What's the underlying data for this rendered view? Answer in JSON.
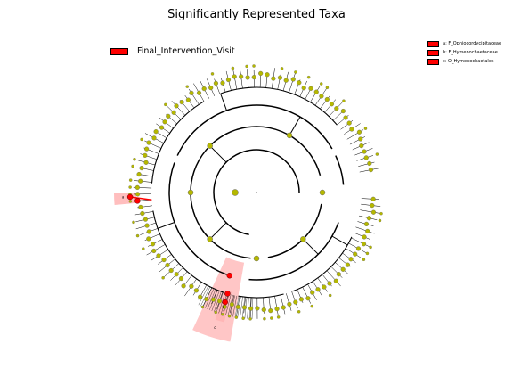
{
  "title": "Significantly Represented Taxa",
  "legend_group": {
    "label": "Final_Intervention_Visit",
    "color": "#ff0000"
  },
  "legend_taxa": [
    {
      "label": "a: F_Ophiocordycipitaceae",
      "color": "#ff0000"
    },
    {
      "label": "b: F_Hymenochaetaceae",
      "color": "#ff0000"
    },
    {
      "label": "c: O_Hymenochaetales",
      "color": "#ff0000"
    }
  ],
  "clade_labels": [
    "a",
    "b",
    "c"
  ],
  "colors": {
    "node_default": "#b5b800",
    "node_highlight": "#ff0000",
    "shade": "#ffb3b3",
    "line": "#000000"
  }
}
